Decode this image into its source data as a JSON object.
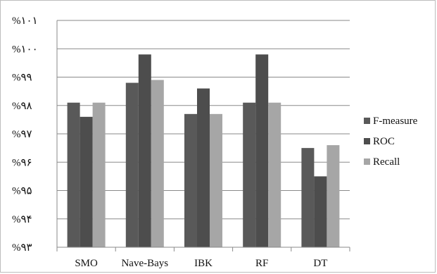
{
  "chart_data": {
    "type": "bar",
    "categories": [
      "SMO",
      "Nave-Bays",
      "IBK",
      "RF",
      "DT"
    ],
    "series": [
      {
        "name": "F-measure",
        "values": [
          98.1,
          98.8,
          97.7,
          98.1,
          96.5
        ]
      },
      {
        "name": "ROC",
        "values": [
          97.6,
          99.8,
          98.6,
          99.8,
          95.5
        ]
      },
      {
        "name": "Recall",
        "values": [
          98.1,
          98.9,
          97.7,
          98.1,
          96.6
        ]
      }
    ],
    "title": "",
    "xlabel": "",
    "ylabel": "",
    "ylim": [
      93,
      101
    ],
    "yticks": [
      93,
      94,
      95,
      96,
      97,
      98,
      99,
      100,
      101
    ],
    "ytick_labels": [
      "%۹۳",
      "%۹۴",
      "%۹۵",
      "%۹۶",
      "%۹۷",
      "%۹۸",
      "%۹۹",
      "%۱۰۰",
      "%۱۰۱"
    ],
    "grid": true,
    "legend_position": "right",
    "colors": [
      "#595959",
      "#4d4d4d",
      "#a6a6a6"
    ]
  }
}
